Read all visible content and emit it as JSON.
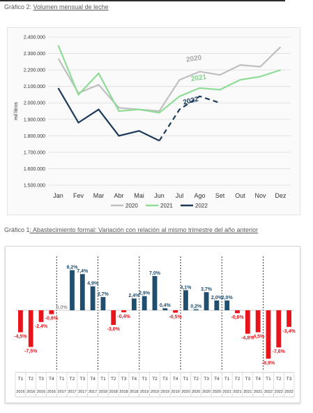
{
  "captions": {
    "chart1_prefix": "Gráfico 2:",
    "chart1_title": "Volumen mensual de leche",
    "chart2_prefix": "Gráfico 1",
    "chart2_title": ": Abastecimiento formal: Variación con relación al mismo trimestre del año anterior"
  },
  "chart_data": [
    {
      "type": "line",
      "ylabel": "mil litros",
      "ylim": [
        1500000,
        2400000
      ],
      "yticks": [
        "1.500.000",
        "1.600.000",
        "1.700.000",
        "1.800.000",
        "1.900.000",
        "2.000.000",
        "2.100.000",
        "2.200.000",
        "2.300.000",
        "2.400.000"
      ],
      "categories": [
        "Jan",
        "Fev",
        "Mar",
        "Abr",
        "Mai",
        "Jun",
        "Jul",
        "Ago",
        "Set",
        "Out",
        "Nov",
        "Dez"
      ],
      "grid": true,
      "legend_position": "bottom",
      "series": [
        {
          "name": "2020",
          "color": "#bfbfbf",
          "label": "2020",
          "values": [
            2270000,
            2060000,
            2110000,
            1970000,
            1960000,
            1950000,
            2140000,
            2190000,
            2170000,
            2230000,
            2220000,
            2340000
          ]
        },
        {
          "name": "2021",
          "color": "#8fdc96",
          "label": "2021",
          "values": [
            2350000,
            2050000,
            2180000,
            1950000,
            1960000,
            1940000,
            2040000,
            2090000,
            2080000,
            2140000,
            2160000,
            2200000
          ]
        },
        {
          "name": "2022",
          "color": "#1c3a57",
          "label": "2022",
          "values": [
            2090000,
            1880000,
            1960000,
            1800000,
            1830000,
            1770000,
            1960000,
            2040000,
            2000000,
            null,
            null,
            null
          ]
        }
      ]
    },
    {
      "type": "bar",
      "groups": [
        "2016",
        "2017",
        "2018",
        "2019",
        "2020",
        "2021",
        "2022"
      ],
      "quarters": [
        "T1",
        "T2",
        "T3",
        "T4"
      ],
      "colors": {
        "positive": "#1f4e6e",
        "negative": "#e8141b"
      },
      "categories": [
        {
          "q": "T1",
          "y": "2016"
        },
        {
          "q": "T2",
          "y": "2016"
        },
        {
          "q": "T3",
          "y": "2016"
        },
        {
          "q": "T4",
          "y": "2016"
        },
        {
          "q": "T1",
          "y": "2017"
        },
        {
          "q": "T2",
          "y": "2017"
        },
        {
          "q": "T3",
          "y": "2017"
        },
        {
          "q": "T4",
          "y": "2017"
        },
        {
          "q": "T1",
          "y": "2018"
        },
        {
          "q": "T2",
          "y": "2018"
        },
        {
          "q": "T3",
          "y": "2018"
        },
        {
          "q": "T4",
          "y": "2018"
        },
        {
          "q": "T1",
          "y": "2019"
        },
        {
          "q": "T2",
          "y": "2019"
        },
        {
          "q": "T3",
          "y": "2019"
        },
        {
          "q": "T4",
          "y": "2019"
        },
        {
          "q": "T1",
          "y": "2020"
        },
        {
          "q": "T2",
          "y": "2020"
        },
        {
          "q": "T3",
          "y": "2020"
        },
        {
          "q": "T4",
          "y": "2020"
        },
        {
          "q": "T1",
          "y": "2021"
        },
        {
          "q": "T2",
          "y": "2021"
        },
        {
          "q": "T3",
          "y": "2021"
        },
        {
          "q": "T4",
          "y": "2021"
        },
        {
          "q": "T1",
          "y": "2022"
        },
        {
          "q": "T2",
          "y": "2022"
        },
        {
          "q": "T3",
          "y": "2022"
        }
      ],
      "values": [
        -4.5,
        -7.5,
        -2.4,
        -0.8,
        0.0,
        8.2,
        7.4,
        4.9,
        2.7,
        -3.0,
        -0.4,
        2.4,
        2.9,
        7.0,
        0.4,
        -0.5,
        4.1,
        0.2,
        3.7,
        2.0,
        2.0,
        -0.6,
        -4.8,
        -4.5,
        -9.9,
        -7.6,
        -3.4
      ],
      "labels": [
        "-4,5%",
        "-7,5%",
        "-2,4%",
        "-0,8%",
        "0,0%",
        "8,2%",
        "7,4%",
        "4,9%",
        "2,7%",
        "-3,0%",
        "-0,4%",
        "2,4%",
        "2,9%",
        "7,0%",
        "0,4%",
        "-0,5%",
        "4,1%",
        "0,2%",
        "3,7%",
        "2,0%",
        "2,0%",
        "-0,6%",
        "-4,8%",
        "-4,5%",
        "-9,9%",
        "-7,6%",
        "-3,4%"
      ]
    }
  ]
}
